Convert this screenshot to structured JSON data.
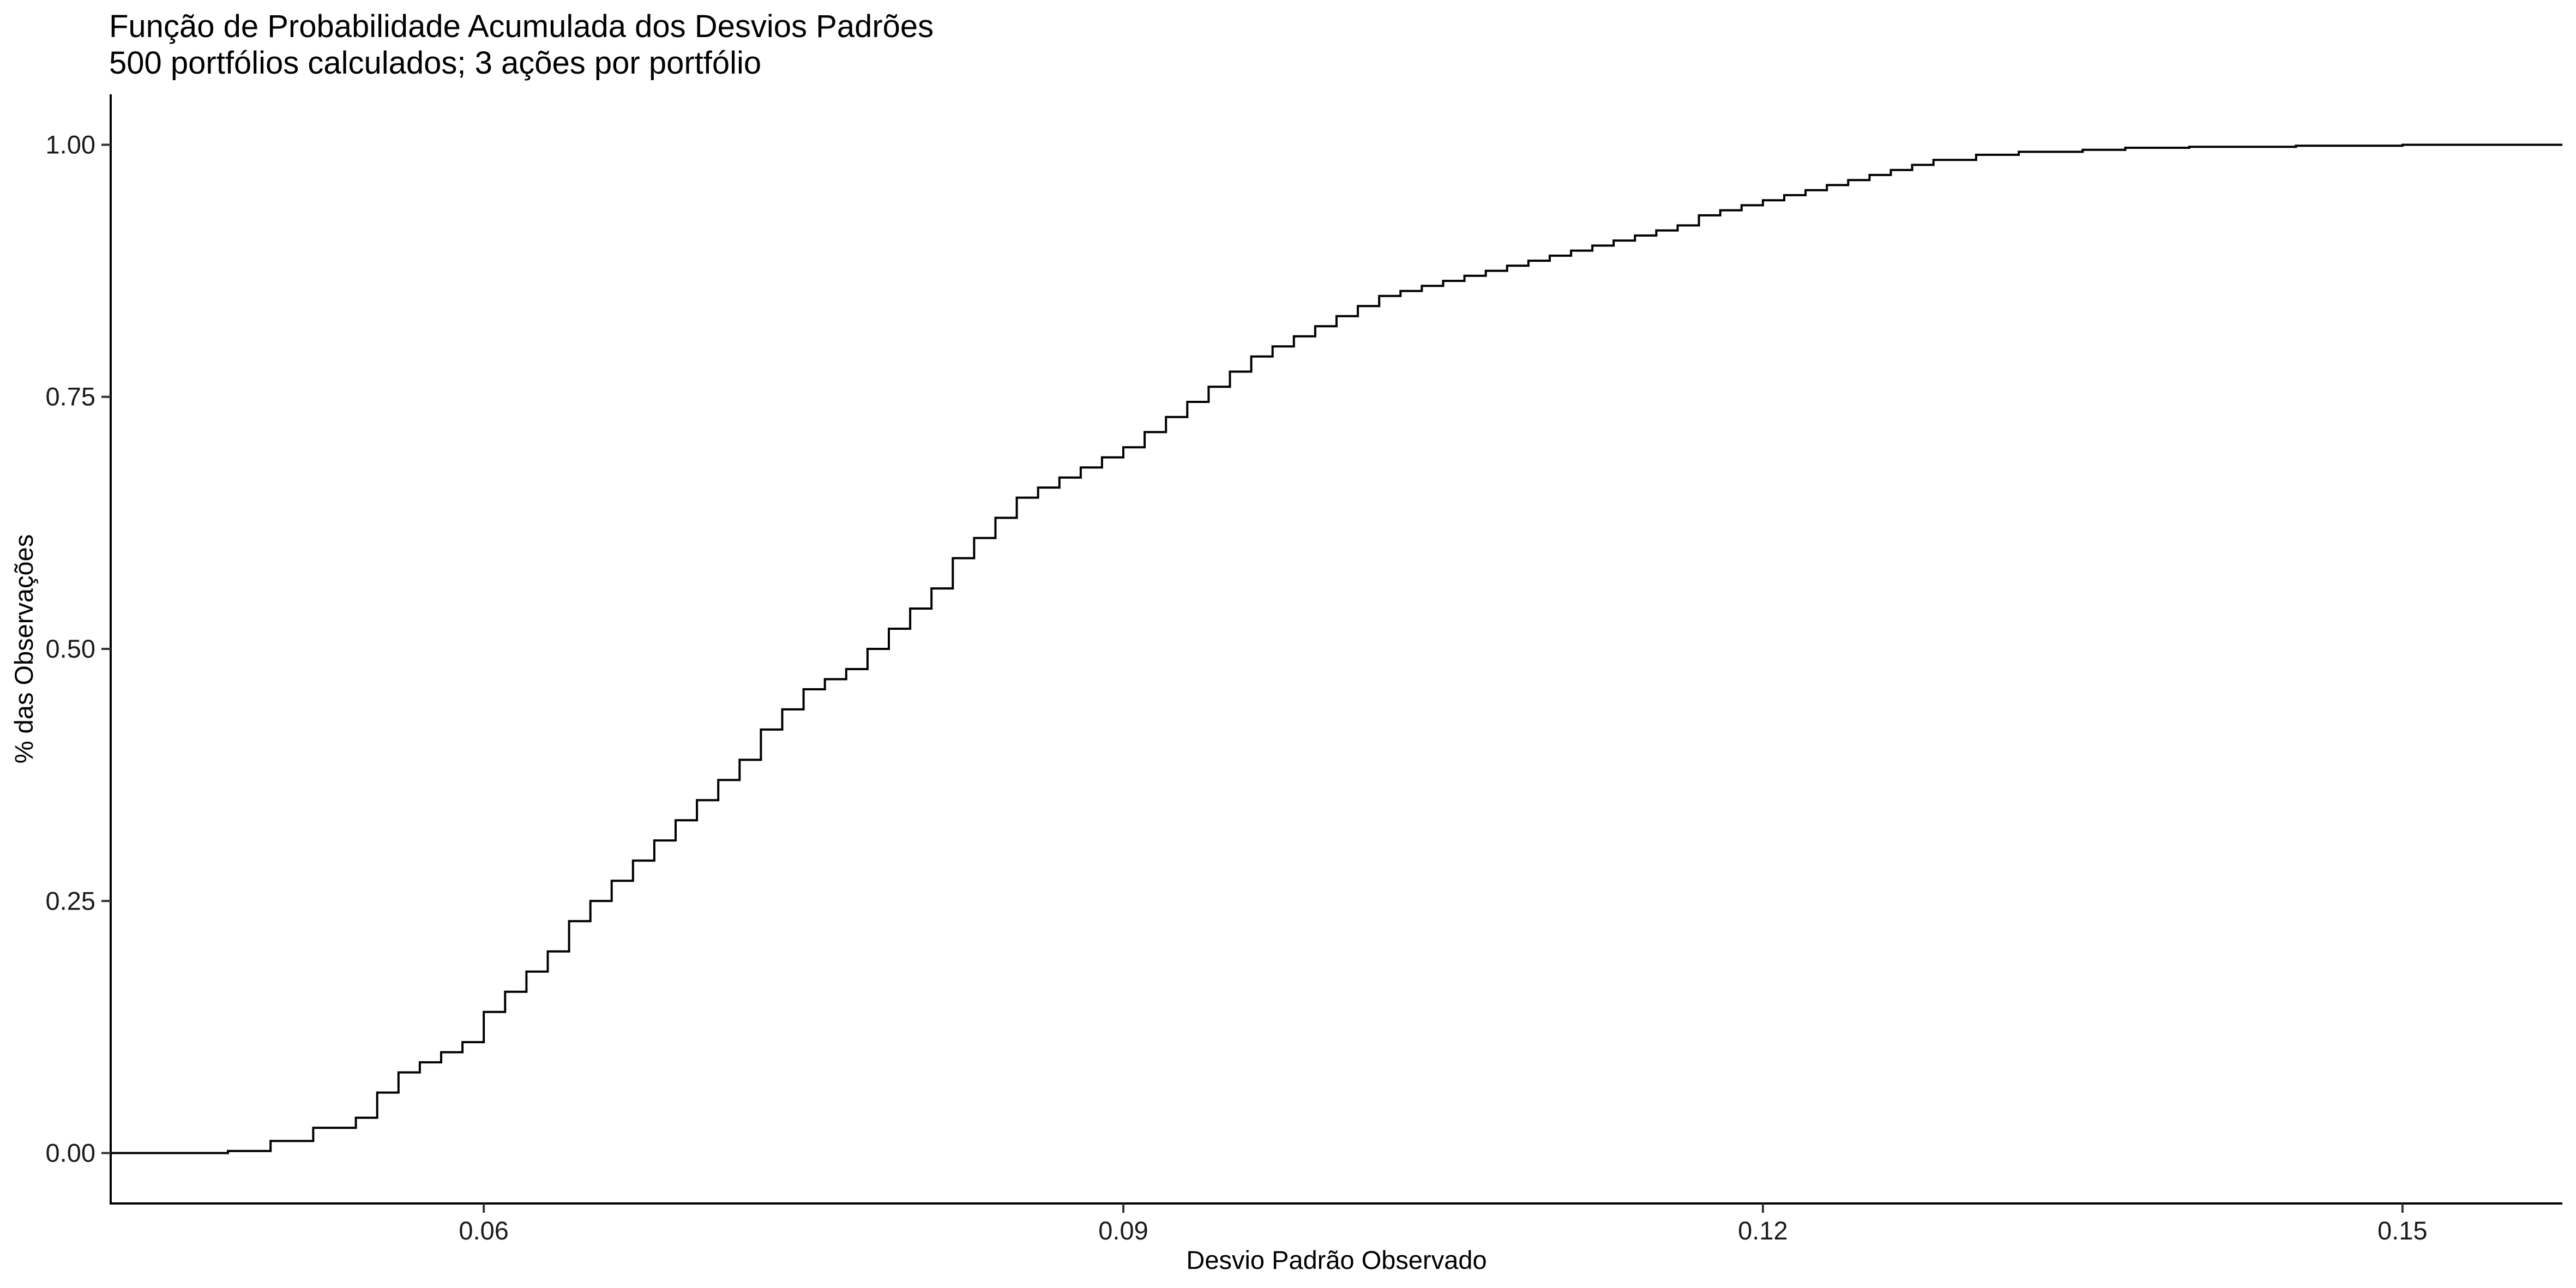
{
  "chart_data": {
    "type": "line",
    "subtype": "step (empirical cumulative distribution)",
    "title": "Função de Probabilidade Acumulada dos Desvios Padrões",
    "subtitle": "500 portfólios calculados; 3 ações por portfólio",
    "xlabel": "Desvio Padrão Observado",
    "ylabel": "% das Observações",
    "xlim": [
      0.0425,
      0.1575
    ],
    "ylim": [
      -0.05,
      1.05
    ],
    "x_ticks": [
      0.06,
      0.09,
      0.12,
      0.15
    ],
    "x_tick_labels": [
      "0.06",
      "0.09",
      "0.12",
      "0.15"
    ],
    "y_ticks": [
      0.0,
      0.25,
      0.5,
      0.75,
      1.0
    ],
    "y_tick_labels": [
      "0.00",
      "0.25",
      "0.50",
      "0.75",
      "1.00"
    ],
    "grid": false,
    "legend": "none",
    "line_color": "#000000",
    "series": [
      {
        "x": [
          0.0425,
          0.048,
          0.05,
          0.052,
          0.054,
          0.055,
          0.056,
          0.057,
          0.058,
          0.059,
          0.06,
          0.061,
          0.062,
          0.063,
          0.064,
          0.065,
          0.066,
          0.067,
          0.068,
          0.069,
          0.07,
          0.071,
          0.072,
          0.073,
          0.074,
          0.075,
          0.076,
          0.077,
          0.078,
          0.079,
          0.08,
          0.081,
          0.082,
          0.083,
          0.084,
          0.085,
          0.086,
          0.087,
          0.088,
          0.089,
          0.09,
          0.091,
          0.092,
          0.093,
          0.094,
          0.095,
          0.096,
          0.097,
          0.098,
          0.099,
          0.1,
          0.101,
          0.102,
          0.103,
          0.104,
          0.105,
          0.106,
          0.107,
          0.108,
          0.109,
          0.11,
          0.111,
          0.112,
          0.113,
          0.114,
          0.115,
          0.116,
          0.117,
          0.118,
          0.119,
          0.12,
          0.121,
          0.122,
          0.123,
          0.124,
          0.125,
          0.126,
          0.127,
          0.128,
          0.13,
          0.132,
          0.135,
          0.137,
          0.14,
          0.145,
          0.15,
          0.1575
        ],
        "y": [
          0.0,
          0.002,
          0.012,
          0.025,
          0.035,
          0.06,
          0.08,
          0.09,
          0.1,
          0.11,
          0.14,
          0.16,
          0.18,
          0.2,
          0.23,
          0.25,
          0.27,
          0.29,
          0.31,
          0.33,
          0.35,
          0.37,
          0.39,
          0.42,
          0.44,
          0.46,
          0.47,
          0.48,
          0.5,
          0.52,
          0.54,
          0.56,
          0.59,
          0.61,
          0.63,
          0.65,
          0.66,
          0.67,
          0.68,
          0.69,
          0.7,
          0.715,
          0.73,
          0.745,
          0.76,
          0.775,
          0.79,
          0.8,
          0.81,
          0.82,
          0.83,
          0.84,
          0.85,
          0.855,
          0.86,
          0.865,
          0.87,
          0.875,
          0.88,
          0.885,
          0.89,
          0.895,
          0.9,
          0.905,
          0.91,
          0.915,
          0.92,
          0.93,
          0.935,
          0.94,
          0.945,
          0.95,
          0.955,
          0.96,
          0.965,
          0.97,
          0.975,
          0.98,
          0.985,
          0.99,
          0.993,
          0.995,
          0.997,
          0.998,
          0.999,
          1.0,
          1.0
        ]
      }
    ]
  }
}
